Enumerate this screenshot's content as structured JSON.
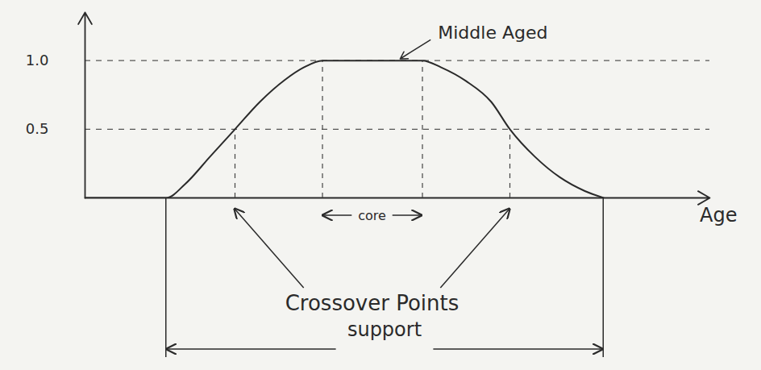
{
  "chart_data": {
    "type": "line",
    "x": [
      0,
      13,
      16,
      20,
      24,
      28,
      32,
      35,
      38,
      54,
      57,
      61,
      65,
      68,
      72,
      76,
      80,
      83
    ],
    "values": [
      0,
      0,
      0.1,
      0.3,
      0.5,
      0.7,
      0.86,
      0.95,
      1,
      1,
      0.95,
      0.85,
      0.7,
      0.5,
      0.3,
      0.15,
      0.05,
      0
    ],
    "xlim": [
      0,
      100
    ],
    "ylim": [
      0,
      1.35
    ],
    "yticks": [
      0.5,
      {
        "value": 1,
        "label": "1.0"
      }
    ],
    "tick_labels": "y",
    "grid": true,
    "x_label": "Age",
    "color": "#2a2a2a",
    "line_style": "solid",
    "annotations": [
      {
        "text": "Middle Aged",
        "x": 57,
        "y": 1.2,
        "arrow_to": [
          50,
          1
        ]
      },
      {
        "text": "core",
        "x1": 38,
        "x2": 54
      },
      {
        "text": "Crossover Points",
        "points": [
          24,
          68
        ]
      },
      {
        "text": "support",
        "x1": 13,
        "x2": 83
      }
    ]
  }
}
